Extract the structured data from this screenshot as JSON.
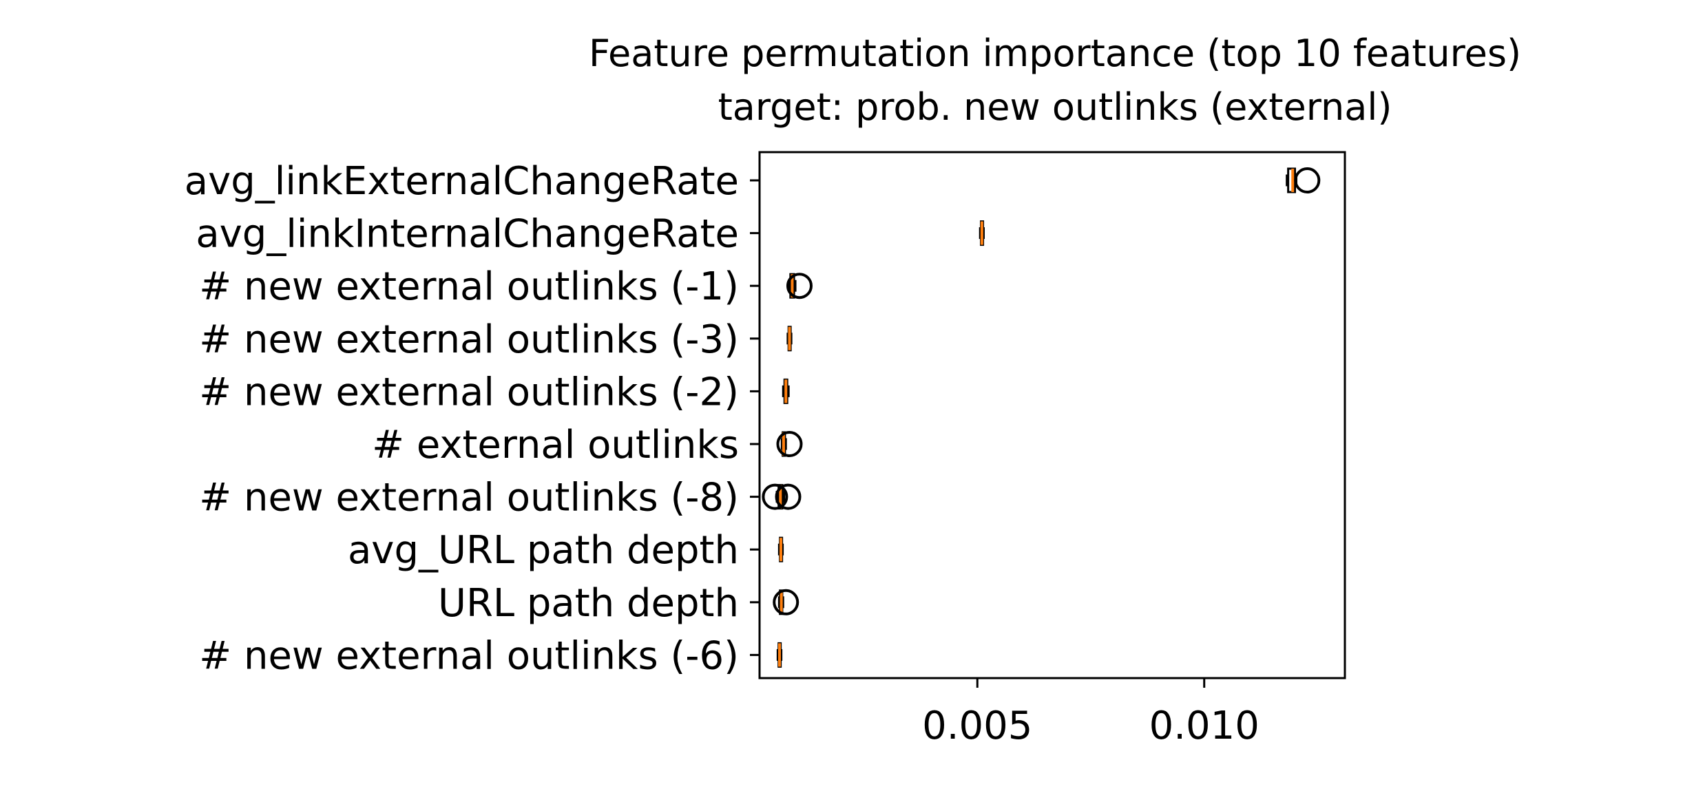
{
  "chart_data": {
    "type": "boxplot",
    "orientation": "horizontal",
    "title": "Feature permutation importance (top 10 features)",
    "subtitle": "target: prob. new outlinks (external)",
    "xlabel": "",
    "ylabel": "",
    "xlim": [
      0.0002,
      0.0131
    ],
    "xticks": [
      0.005,
      0.01
    ],
    "xtick_labels": [
      "0.005",
      "0.010"
    ],
    "grid": false,
    "colors": {
      "box": "#000000",
      "median": "#ff7f0e",
      "flier": "#000000"
    },
    "features": [
      {
        "label": "avg_linkExternalChangeRate",
        "q1": 0.01185,
        "median": 0.01195,
        "q3": 0.012,
        "whisker_low": 0.01182,
        "whisker_high": 0.01203,
        "fliers": [
          0.01227
        ]
      },
      {
        "label": "avg_linkInternalChangeRate",
        "q1": 0.00508,
        "median": 0.0051,
        "q3": 0.00512,
        "whisker_low": 0.00506,
        "whisker_high": 0.00514,
        "fliers": []
      },
      {
        "label": "# new external outlinks (-1)",
        "q1": 0.00088,
        "median": 0.00092,
        "q3": 0.00096,
        "whisker_low": 0.00085,
        "whisker_high": 0.00099,
        "fliers": [
          0.00108
        ]
      },
      {
        "label": "# new external outlinks (-3)",
        "q1": 0.00084,
        "median": 0.00086,
        "q3": 0.00088,
        "whisker_low": 0.00082,
        "whisker_high": 0.0009,
        "fliers": []
      },
      {
        "label": "# new external outlinks (-2)",
        "q1": 0.00075,
        "median": 0.00078,
        "q3": 0.00081,
        "whisker_low": 0.00072,
        "whisker_high": 0.00084,
        "fliers": []
      },
      {
        "label": "# external outlinks",
        "q1": 0.00071,
        "median": 0.00073,
        "q3": 0.00076,
        "whisker_low": 0.00069,
        "whisker_high": 0.00078,
        "fliers": [
          0.00086
        ]
      },
      {
        "label": "# new external outlinks (-8)",
        "q1": 0.00062,
        "median": 0.00066,
        "q3": 0.0007,
        "whisker_low": 0.00058,
        "whisker_high": 0.00074,
        "fliers": [
          0.00054,
          0.00083
        ]
      },
      {
        "label": "avg_URL path depth",
        "q1": 0.00065,
        "median": 0.00067,
        "q3": 0.00069,
        "whisker_low": 0.00063,
        "whisker_high": 0.00071,
        "fliers": []
      },
      {
        "label": "URL path depth",
        "q1": 0.00065,
        "median": 0.00068,
        "q3": 0.0007,
        "whisker_low": 0.00063,
        "whisker_high": 0.00072,
        "fliers": [
          0.00078
        ]
      },
      {
        "label": "# new external outlinks (-6)",
        "q1": 0.00062,
        "median": 0.00064,
        "q3": 0.00066,
        "whisker_low": 0.0006,
        "whisker_high": 0.00068,
        "fliers": []
      }
    ]
  }
}
